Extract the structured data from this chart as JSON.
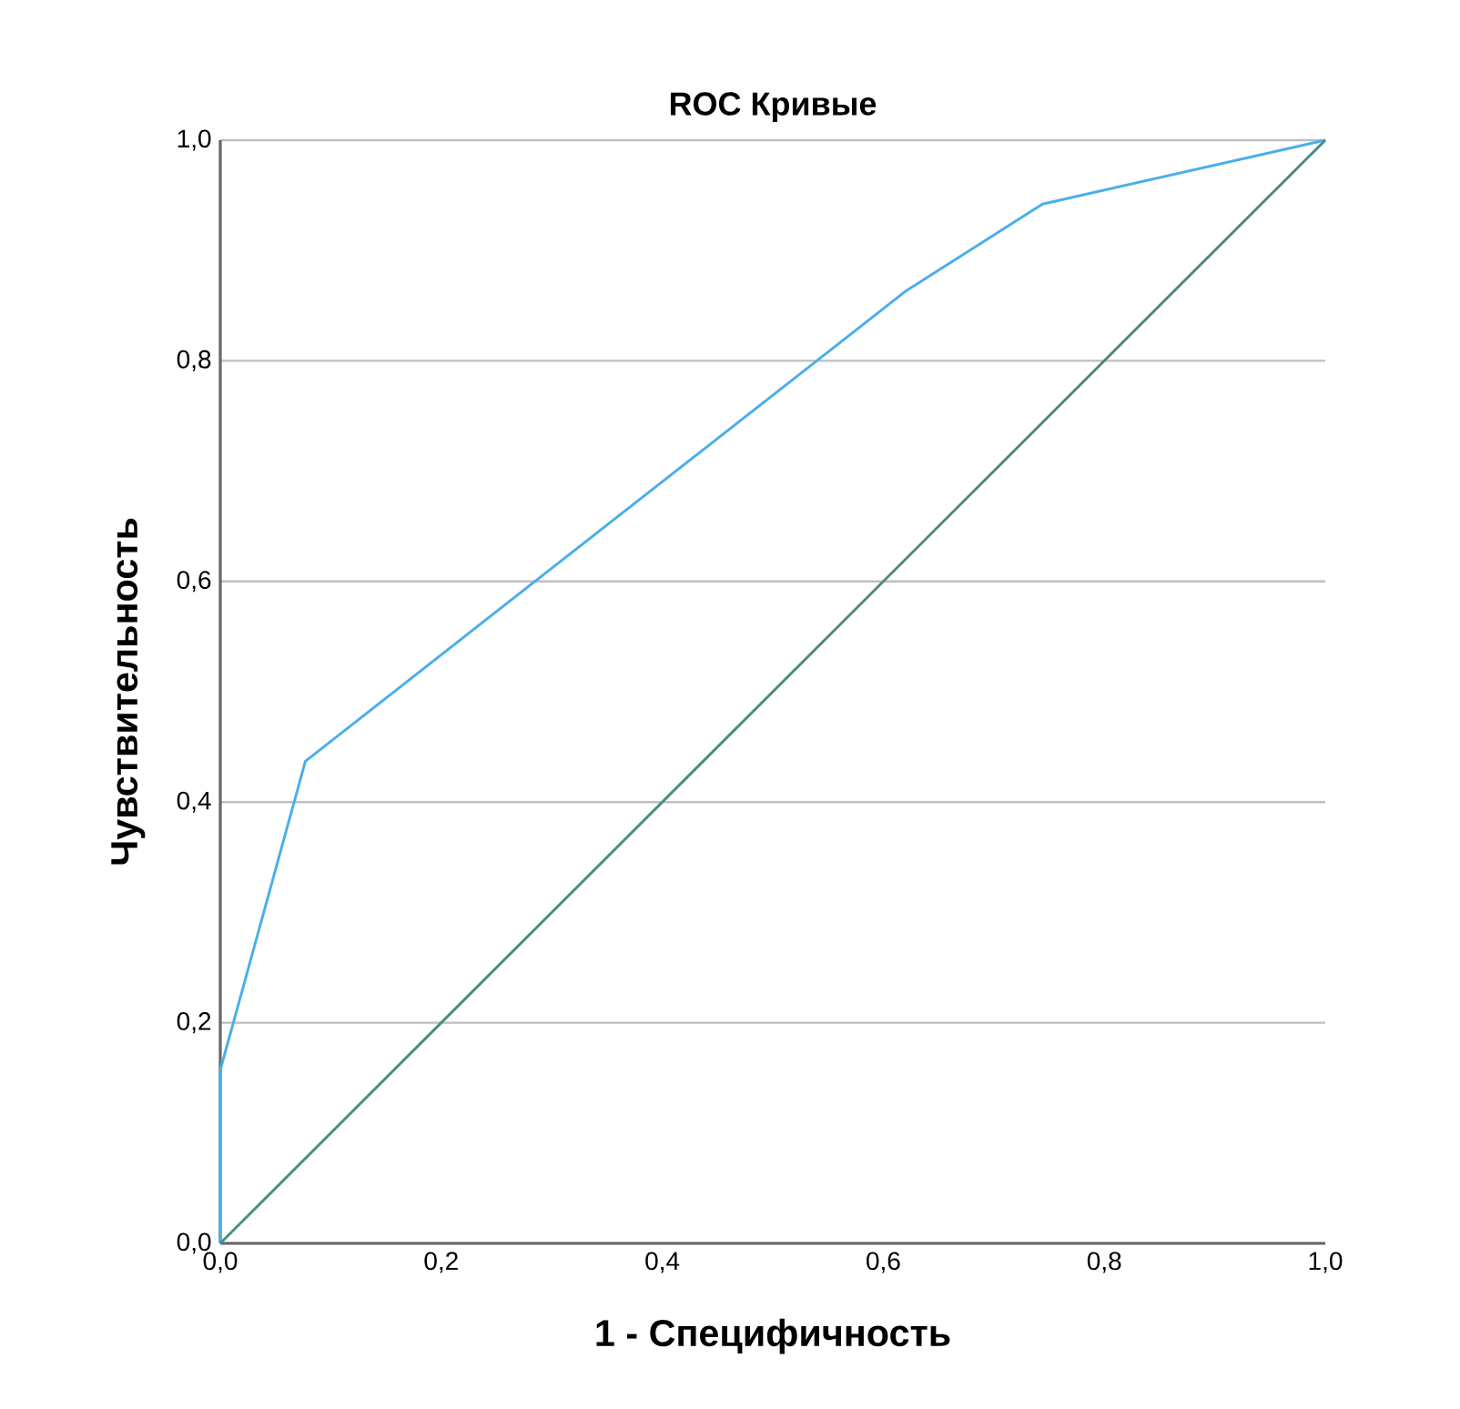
{
  "chart_data": {
    "type": "line",
    "title": "ROC Кривые",
    "xlabel": "1 - Специфичность",
    "ylabel": "Чувствительность",
    "xlim": [
      0,
      1
    ],
    "ylim": [
      0,
      1
    ],
    "xticks": [
      {
        "value": 0,
        "label": "0,0"
      },
      {
        "value": 0.2,
        "label": "0,2"
      },
      {
        "value": 0.4,
        "label": "0,4"
      },
      {
        "value": 0.6,
        "label": "0,6"
      },
      {
        "value": 0.8,
        "label": "0,8"
      },
      {
        "value": 1,
        "label": "1,0"
      }
    ],
    "yticks": [
      {
        "value": 0,
        "label": "0,0"
      },
      {
        "value": 0.2,
        "label": "0,2"
      },
      {
        "value": 0.4,
        "label": "0,4"
      },
      {
        "value": 0.6,
        "label": "0,6"
      },
      {
        "value": 0.8,
        "label": "0,8"
      },
      {
        "value": 1,
        "label": "1,0"
      }
    ],
    "grid": "y",
    "marker": "none",
    "line_style": "solid",
    "series": [
      {
        "color": "#4aaeea",
        "x": [
          0,
          0,
          0.077,
          0.62,
          0.744,
          1
        ],
        "values": [
          0,
          0.157,
          0.437,
          0.863,
          0.942,
          1
        ]
      },
      {
        "color": "#4a8a82",
        "x": [
          0,
          1
        ],
        "values": [
          0,
          1
        ]
      }
    ]
  }
}
